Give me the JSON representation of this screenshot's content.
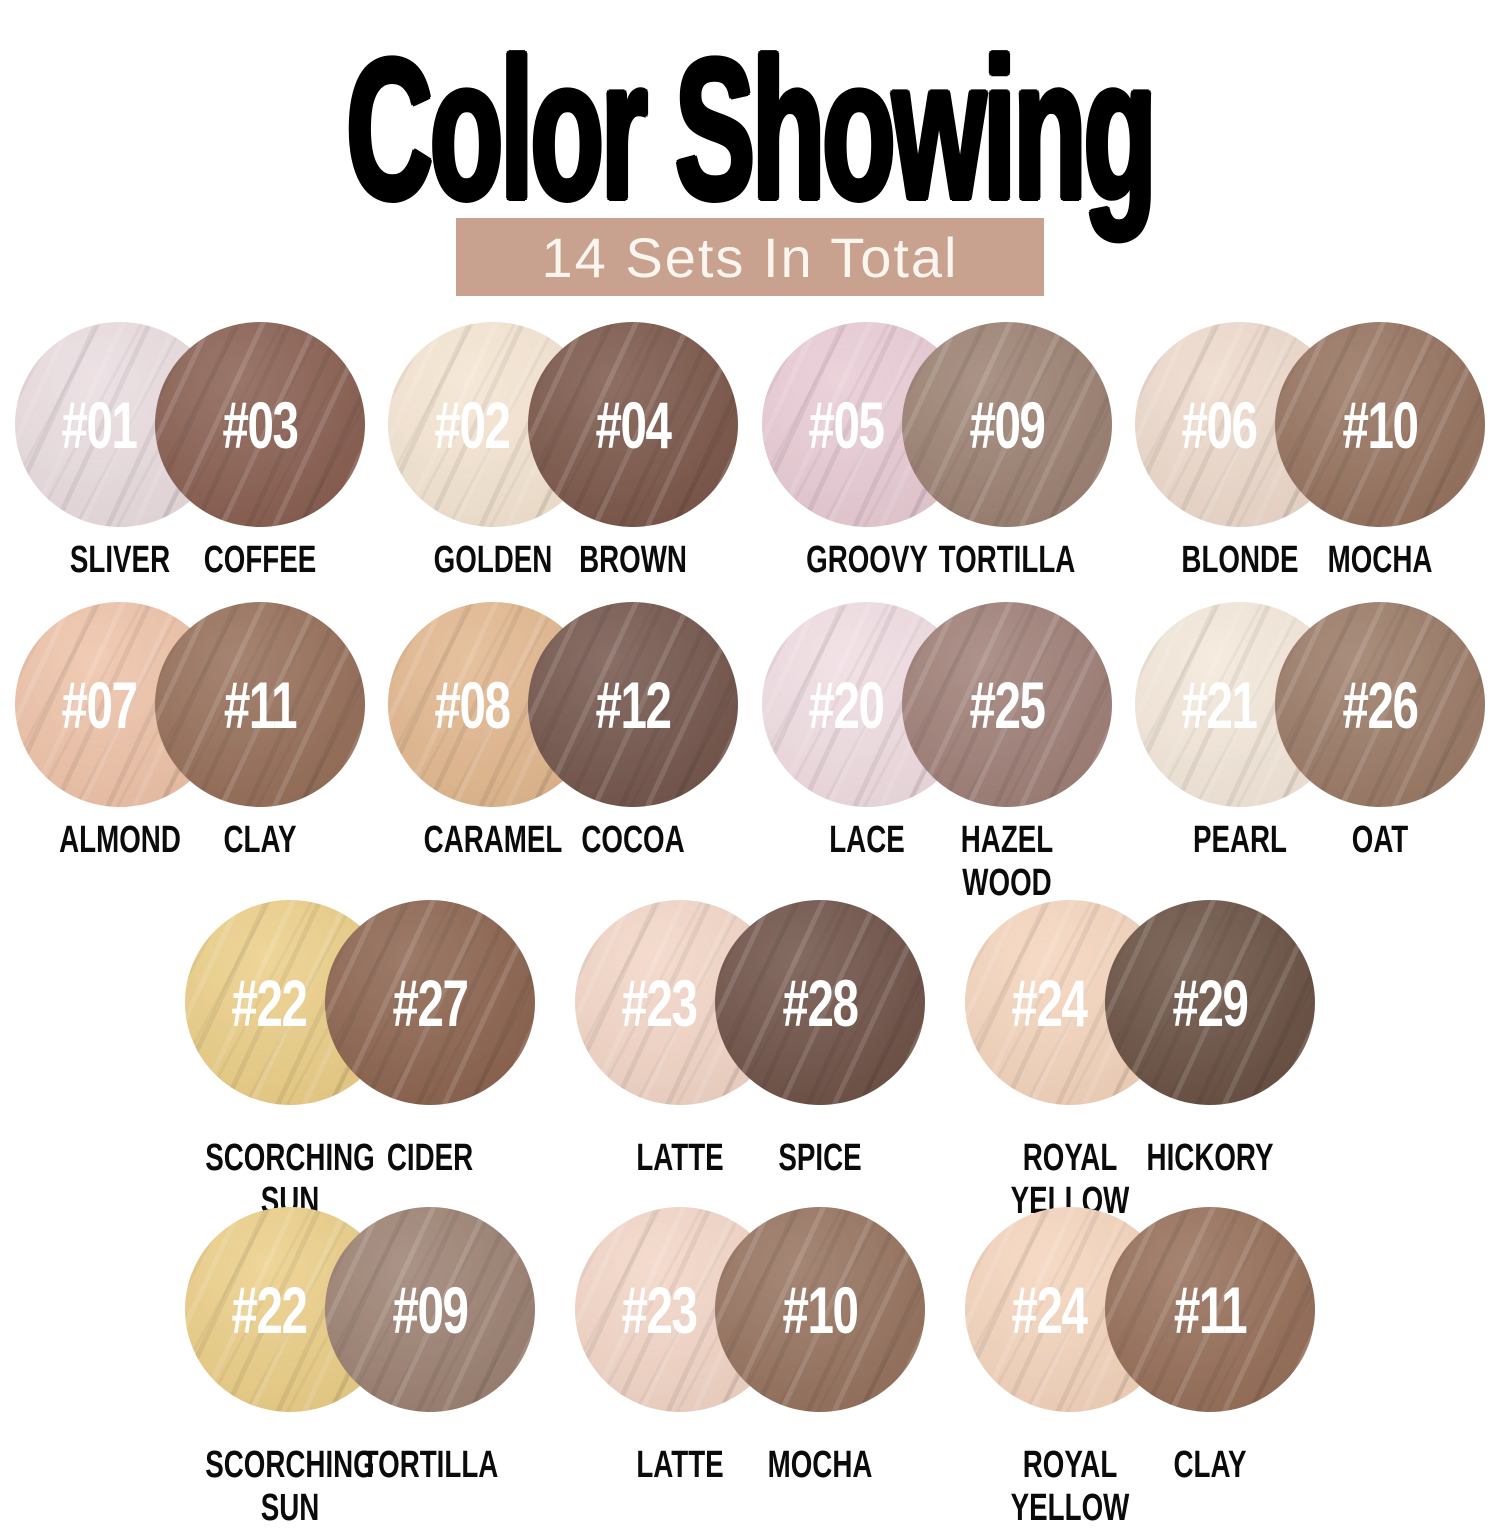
{
  "title": "Color Showing",
  "banner": {
    "text": "14 Sets In Total",
    "bg_color": "#c9a18f",
    "text_color": "#faf5ee"
  },
  "rows": [
    {
      "pairs": [
        {
          "light": {
            "num": "#01",
            "name": "SLIVER",
            "color": "#eadde0"
          },
          "dark": {
            "num": "#03",
            "name": "COFFEE",
            "color": "#8a6052"
          }
        },
        {
          "light": {
            "num": "#02",
            "name": "GOLDEN",
            "color": "#f5e5d2"
          },
          "dark": {
            "num": "#04",
            "name": "BROWN",
            "color": "#7d584b"
          }
        },
        {
          "light": {
            "num": "#05",
            "name": "GROOVY",
            "color": "#e9ccd5"
          },
          "dark": {
            "num": "#09",
            "name": "TORTILLA",
            "color": "#9d8273"
          }
        },
        {
          "light": {
            "num": "#06",
            "name": "BLONDE",
            "color": "#eedacc"
          },
          "dark": {
            "num": "#10",
            "name": "MOCHA",
            "color": "#97735f"
          }
        }
      ]
    },
    {
      "pairs": [
        {
          "light": {
            "num": "#07",
            "name": "ALMOND",
            "color": "#efc3a9"
          },
          "dark": {
            "num": "#11",
            "name": "CLAY",
            "color": "#97705a"
          }
        },
        {
          "light": {
            "num": "#08",
            "name": "CARAMEL",
            "color": "#e3b88f"
          },
          "dark": {
            "num": "#12",
            "name": "COCOA",
            "color": "#75574d"
          }
        },
        {
          "light": {
            "num": "#20",
            "name": "LACE",
            "color": "#f0dde2"
          },
          "dark": {
            "num": "#25",
            "name": "HAZEL\nWOOD",
            "color": "#a08078"
          }
        },
        {
          "light": {
            "num": "#21",
            "name": "PEARL",
            "color": "#f4e8da"
          },
          "dark": {
            "num": "#26",
            "name": "OAT",
            "color": "#9c7b67"
          }
        }
      ]
    },
    {
      "pairs": [
        {
          "light": {
            "num": "#22",
            "name": "SCORCHING\nSUN",
            "color": "#eccf88"
          },
          "dark": {
            "num": "#27",
            "name": "CIDER",
            "color": "#8d6550"
          }
        },
        {
          "light": {
            "num": "#23",
            "name": "LATTE",
            "color": "#f3d6c7"
          },
          "dark": {
            "num": "#28",
            "name": "SPICE",
            "color": "#705348"
          }
        },
        {
          "light": {
            "num": "#24",
            "name": "ROYAL\nYELLOW",
            "color": "#f5d5bd"
          },
          "dark": {
            "num": "#29",
            "name": "HICKORY",
            "color": "#6b5244"
          }
        }
      ]
    },
    {
      "pairs": [
        {
          "light": {
            "num": "#22",
            "name": "SCORCHING\nSUN",
            "color": "#eccf88"
          },
          "dark": {
            "num": "#09",
            "name": "TORTILLA",
            "color": "#9d8273"
          }
        },
        {
          "light": {
            "num": "#23",
            "name": "LATTE",
            "color": "#f3d6c7"
          },
          "dark": {
            "num": "#10",
            "name": "MOCHA",
            "color": "#97735f"
          }
        },
        {
          "light": {
            "num": "#24",
            "name": "ROYAL\nYELLOW",
            "color": "#f5d5bd"
          },
          "dark": {
            "num": "#11",
            "name": "CLAY",
            "color": "#97705a"
          }
        }
      ]
    }
  ]
}
